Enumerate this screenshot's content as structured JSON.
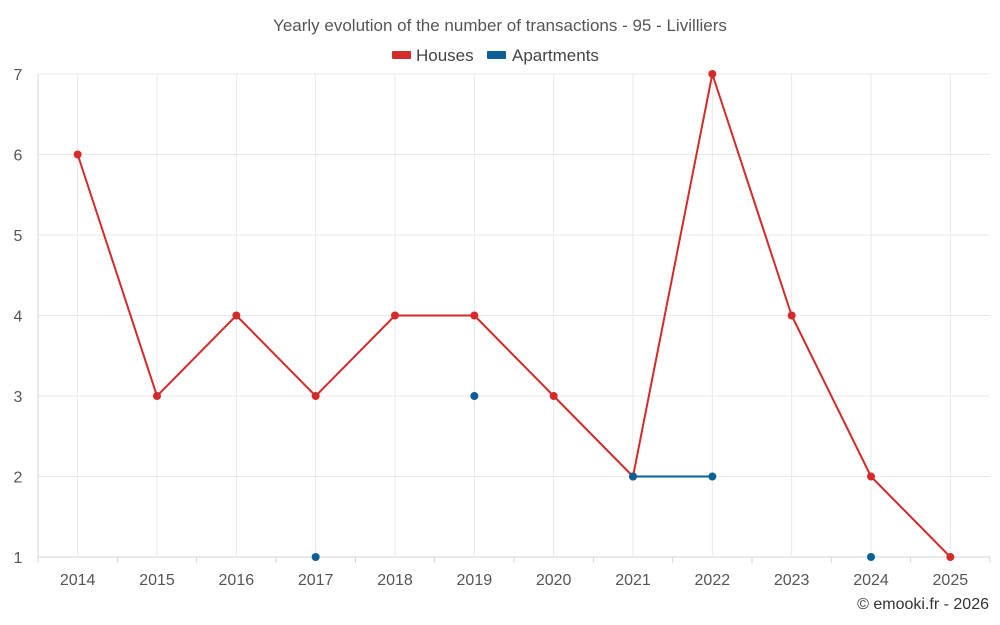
{
  "chart_data": {
    "type": "line",
    "title": "Yearly evolution of the number of transactions - 95 - Livilliers",
    "categories": [
      "2014",
      "2015",
      "2016",
      "2017",
      "2018",
      "2019",
      "2020",
      "2021",
      "2022",
      "2023",
      "2024",
      "2025"
    ],
    "series": [
      {
        "name": "Houses",
        "color": "#d42a2a",
        "values": [
          6,
          3,
          4,
          3,
          4,
          4,
          3,
          2,
          7,
          4,
          2,
          1
        ]
      },
      {
        "name": "Apartments",
        "color": "#0a5f96",
        "values": [
          null,
          null,
          null,
          1,
          null,
          3,
          null,
          2,
          2,
          null,
          1,
          null
        ]
      }
    ],
    "yticks": [
      1,
      2,
      3,
      4,
      5,
      6,
      7
    ],
    "ylim": [
      1,
      7
    ],
    "xlabel": "",
    "ylabel": "",
    "legend": "top-center",
    "grid": true
  },
  "credit": "© emooki.fr - 2026"
}
